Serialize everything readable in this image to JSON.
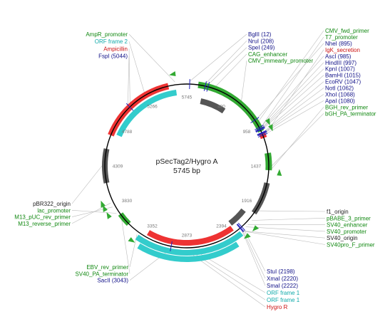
{
  "plasmid": {
    "name": "pSecTag2/Hygro A",
    "size": "5745 bp"
  },
  "ticks": [
    "5745",
    "480",
    "958",
    "1437",
    "1916",
    "2394",
    "2873",
    "3352",
    "3830",
    "4309",
    "4788",
    "5266"
  ],
  "colors": {
    "backbone": "#000000",
    "green": "#33aa33",
    "red": "#ee3333",
    "cyan": "#33cccc",
    "grey": "#555555",
    "blue": "#2222bb",
    "leader": "#bbbbbb"
  },
  "labels": {
    "top_left": [
      {
        "text": "AmpR_promoter",
        "color": "#118811"
      },
      {
        "text": "ORF frame 2",
        "color": "#11aaaa"
      },
      {
        "text": "Ampicillin",
        "color": "#cc1111"
      },
      {
        "text": "FspI (5044)",
        "color": "#111188"
      }
    ],
    "top_mid": [
      {
        "text": "BglII (12)",
        "color": "#111188"
      },
      {
        "text": "NruI (208)",
        "color": "#111188"
      },
      {
        "text": "SpeI (249)",
        "color": "#111188"
      },
      {
        "text": "CAG_enhancer",
        "color": "#118811"
      },
      {
        "text": "CMV_immearly_promoter",
        "color": "#118811"
      }
    ],
    "top_right": [
      {
        "text": "CMV_fwd_primer",
        "color": "#118811"
      },
      {
        "text": "T7_promoter",
        "color": "#118811"
      },
      {
        "text": "NheI (895)",
        "color": "#111188"
      },
      {
        "text": "IgK_secretion",
        "color": "#cc1111"
      },
      {
        "text": "AscI (985)",
        "color": "#111188"
      },
      {
        "text": "HindIII (997)",
        "color": "#111188"
      },
      {
        "text": "KpnI (1007)",
        "color": "#111188"
      },
      {
        "text": "BamHI (1015)",
        "color": "#111188"
      },
      {
        "text": "EcoRV (1047)",
        "color": "#111188"
      },
      {
        "text": "NotI (1062)",
        "color": "#111188"
      },
      {
        "text": "XhoI (1068)",
        "color": "#111188"
      },
      {
        "text": "ApaI (1080)",
        "color": "#111188"
      },
      {
        "text": "BGH_rev_primer",
        "color": "#118811"
      },
      {
        "text": "bGH_PA_terminator",
        "color": "#118811"
      }
    ],
    "bottom_right": [
      {
        "text": "f1_origin",
        "color": "#222222"
      },
      {
        "text": "pBABE_3_primer",
        "color": "#118811"
      },
      {
        "text": "SV40_enhancer",
        "color": "#118811"
      },
      {
        "text": "SV40_promoter",
        "color": "#118811"
      },
      {
        "text": "SV40_origin",
        "color": "#222222"
      },
      {
        "text": "SV40pro_F_primer",
        "color": "#118811"
      }
    ],
    "left": [
      {
        "text": "pBR322_origin",
        "color": "#222222"
      },
      {
        "text": "lac_promoter",
        "color": "#118811"
      },
      {
        "text": "M13_pUC_rev_primer",
        "color": "#118811"
      },
      {
        "text": "M13_reverse_primer",
        "color": "#118811"
      }
    ],
    "bottom_left": [
      {
        "text": "EBV_rev_primer",
        "color": "#118811"
      },
      {
        "text": "SV40_PA_terminator",
        "color": "#118811"
      },
      {
        "text": "SacII (3043)",
        "color": "#111188"
      }
    ],
    "bottom_mid": [
      {
        "text": "StuI (2198)",
        "color": "#111188"
      },
      {
        "text": "XmaI (2220)",
        "color": "#111188"
      },
      {
        "text": "SmaI (2222)",
        "color": "#111188"
      },
      {
        "text": "ORF frame 1",
        "color": "#11aaaa"
      },
      {
        "text": "ORF frame 1",
        "color": "#11aaaa"
      },
      {
        "text": "Hygro R",
        "color": "#cc1111"
      }
    ]
  }
}
